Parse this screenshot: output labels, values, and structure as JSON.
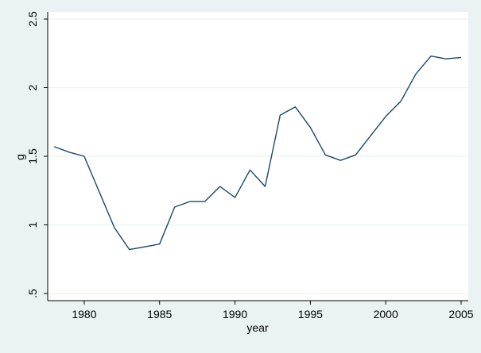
{
  "chart_data": {
    "type": "line",
    "title": "",
    "xlabel": "year",
    "ylabel": "g",
    "xlim": [
      1978,
      2005
    ],
    "ylim": [
      0.5,
      2.5
    ],
    "x_ticks": [
      1980,
      1985,
      1990,
      1995,
      2000,
      2005
    ],
    "x_tick_labels": [
      "1980",
      "1985",
      "1990",
      "1995",
      "2000",
      "2005"
    ],
    "y_ticks": [
      0.5,
      1,
      1.5,
      2,
      2.5
    ],
    "y_tick_labels": [
      ".5",
      "1",
      "1.5",
      "2",
      "2.5"
    ],
    "grid": true,
    "legend": "none",
    "colors": {
      "line": "#1a476f",
      "background": "#eaf2f3",
      "plot_area": "#ffffff",
      "grid": "#eaf2f3"
    },
    "series": [
      {
        "x": [
          1978,
          1979,
          1980,
          1981,
          1982,
          1983,
          1984,
          1985,
          1986,
          1987,
          1988,
          1989,
          1990,
          1991,
          1992,
          1993,
          1994,
          1995,
          1996,
          1997,
          1998,
          1999,
          2000,
          2001,
          2002,
          2003,
          2004,
          2005
        ],
        "values": [
          1.57,
          1.53,
          1.5,
          1.24,
          0.98,
          0.82,
          0.84,
          0.86,
          1.13,
          1.17,
          1.17,
          1.28,
          1.2,
          1.4,
          1.28,
          1.8,
          1.86,
          1.71,
          1.51,
          1.47,
          1.51,
          1.65,
          1.79,
          1.9,
          2.1,
          2.23,
          2.21,
          2.22
        ]
      }
    ]
  }
}
